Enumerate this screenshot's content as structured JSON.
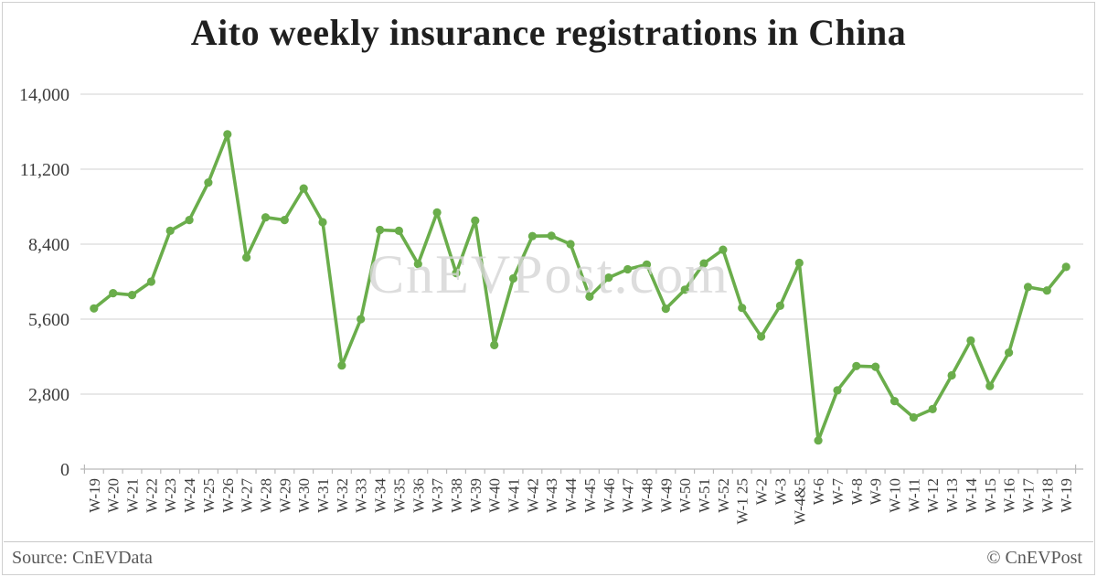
{
  "title": "Aito weekly insurance registrations in China",
  "watermark": "CnEVPost.com",
  "footer": {
    "source": "Source: CnEVData",
    "copyright": "© CnEVPost"
  },
  "colors": {
    "line": "#6aad4b",
    "marker": "#6aad4b",
    "grid": "#d9d9d9",
    "axis": "#b9b9b9",
    "title_text": "#1f1f1f",
    "axis_label_text": "#3d3d3d",
    "footer_text": "#595959",
    "watermark_text": "#d5d5d5"
  },
  "chart_data": {
    "type": "line",
    "title": "Aito weekly insurance registrations in China",
    "xlabel": "",
    "ylabel": "",
    "ylim": [
      0,
      14000
    ],
    "yticks": [
      0,
      2800,
      5600,
      8400,
      11200,
      14000
    ],
    "ytick_labels": [
      "0",
      "2,800",
      "5,600",
      "8,400",
      "11,200",
      "14,000"
    ],
    "grid": "horizontal",
    "legend_position": "none",
    "marker": "circle",
    "categories": [
      "W-19",
      "W-20",
      "W-21",
      "W-22",
      "W-23",
      "W-24",
      "W-25",
      "W-26",
      "W-27",
      "W-28",
      "W-29",
      "W-30",
      "W-31",
      "W-32",
      "W-33",
      "W-34",
      "W-35",
      "W-36",
      "W-37",
      "W-38",
      "W-39",
      "W-40",
      "W-41",
      "W-42",
      "W-43",
      "W-44",
      "W-45",
      "W-46",
      "W-47",
      "W-48",
      "W-49",
      "W-50",
      "W-51",
      "W-52",
      "W-1 25",
      "W-2",
      "W-3",
      "W-4&5",
      "W-6",
      "W-7",
      "W-8",
      "W-9",
      "W-10",
      "W-11",
      "W-12",
      "W-13",
      "W-14",
      "W-15",
      "W-16",
      "W-17",
      "W-18",
      "W-19"
    ],
    "series": [
      {
        "name": "Aito weekly insurance registrations",
        "values": [
          6000,
          6570,
          6500,
          7000,
          8900,
          9300,
          10700,
          12500,
          7900,
          9400,
          9300,
          10480,
          9220,
          3870,
          5600,
          8930,
          8900,
          7660,
          9580,
          7320,
          9280,
          4630,
          7120,
          8700,
          8710,
          8400,
          6440,
          7150,
          7460,
          7640,
          5990,
          6700,
          7680,
          8190,
          6020,
          4950,
          6100,
          7700,
          1070,
          2940,
          3850,
          3820,
          2540,
          1930,
          2240,
          3500,
          4800,
          3100,
          4350,
          6800,
          6670,
          7550
        ]
      }
    ]
  }
}
